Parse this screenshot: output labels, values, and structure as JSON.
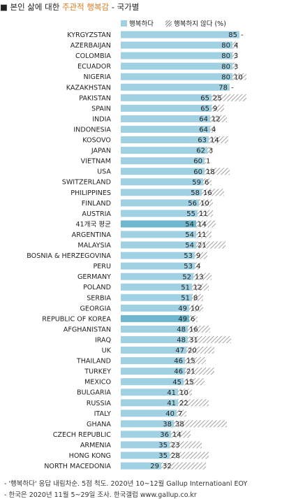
{
  "title": {
    "prefix": "■ 본인 삶에 대한 ",
    "highlight": "주관적 행복감",
    "suffix": " - 국가별"
  },
  "legend": {
    "happy": "행복하다",
    "unhappy": "행복하지 않다 (%)"
  },
  "colors": {
    "happy_bar": "#9fd1e3",
    "highlight_bar": "#6fb7ce",
    "unhappy_hatch": "#8a8a8a",
    "title_highlight": "#e07a1f"
  },
  "chart_data": {
    "type": "bar",
    "orientation": "horizontal",
    "stacked": true,
    "categories": [
      "KYRGYZSTAN",
      "AZERBAIJAN",
      "COLOMBIA",
      "ECUADOR",
      "NIGERIA",
      "KAZAKHSTAN",
      "PAKISTAN",
      "SPAIN",
      "INDIA",
      "INDONESIA",
      "KOSOVO",
      "JAPAN",
      "VIETNAM",
      "USA",
      "SWITZERLAND",
      "PHILIPPINES",
      "FINLAND",
      "AUSTRIA",
      "41개국 평균",
      "ARGENTINA",
      "MALAYSIA",
      "BOSNIA & HERZEGOVINA",
      "PERU",
      "GERMANY",
      "POLAND",
      "SERBIA",
      "GEORGIA",
      "REPUBLIC OF KOREA",
      "AFGHANISTAN",
      "IRAQ",
      "UK",
      "THAILAND",
      "TURKEY",
      "MEXICO",
      "BULGARIA",
      "RUSSIA",
      "ITALY",
      "GHANA",
      "CZECH REPUBLIC",
      "ARMENIA",
      "HONG KONG",
      "NORTH MACEDONIA"
    ],
    "series": [
      {
        "name": "행복하다",
        "values": [
          85,
          80,
          80,
          80,
          80,
          78,
          65,
          65,
          64,
          64,
          63,
          62,
          60,
          60,
          59,
          58,
          56,
          55,
          54,
          54,
          54,
          53,
          53,
          52,
          51,
          51,
          49,
          49,
          48,
          48,
          47,
          46,
          46,
          45,
          41,
          41,
          40,
          38,
          36,
          35,
          35,
          29
        ]
      },
      {
        "name": "행복하지 않다 (%)",
        "values": [
          null,
          4,
          3,
          3,
          10,
          null,
          25,
          9,
          12,
          4,
          14,
          3,
          1,
          18,
          6,
          16,
          10,
          11,
          14,
          11,
          21,
          9,
          4,
          13,
          12,
          8,
          10,
          6,
          16,
          31,
          20,
          15,
          21,
          15,
          10,
          22,
          7,
          38,
          14,
          23,
          28,
          32
        ]
      }
    ],
    "value_labels": {
      "happy": [
        "85",
        "80",
        "80",
        "80",
        "80",
        "78",
        "65",
        "65",
        "64",
        "64",
        "63",
        "62",
        "60",
        "60",
        "59",
        "58",
        "56",
        "55",
        "54",
        "54",
        "54",
        "53",
        "53",
        "52",
        "51",
        "51",
        "49",
        "49",
        "48",
        "48",
        "47",
        "46",
        "46",
        "45",
        "41",
        "41",
        "40",
        "38",
        "36",
        "35",
        "35",
        "29"
      ],
      "unhappy": [
        "-",
        "4",
        "3",
        "3",
        "10",
        "-",
        "25",
        "9",
        "12",
        "4",
        "14",
        "3",
        "1",
        "18",
        "6",
        "16",
        "10",
        "11",
        "14",
        "11",
        "21",
        "9",
        "4",
        "13",
        "12",
        "8",
        "10",
        "6",
        "16",
        "31",
        "20",
        "15",
        "21",
        "15",
        "10",
        "22",
        "7",
        "38",
        "14",
        "23",
        "28",
        "32"
      ]
    },
    "highlighted": [
      "41개국 평균",
      "REPUBLIC OF KOREA"
    ],
    "xlim": [
      0,
      100
    ]
  },
  "footer": {
    "line1": "- '행복하다' 응답 내림차순. 5점 척도. 2020년 10~12월 Gallup Internatioanl EOY",
    "line2": "- 한국은 2020년 11월 5~29일 조사. 한국갤럽 www.gallup.co.kr"
  }
}
